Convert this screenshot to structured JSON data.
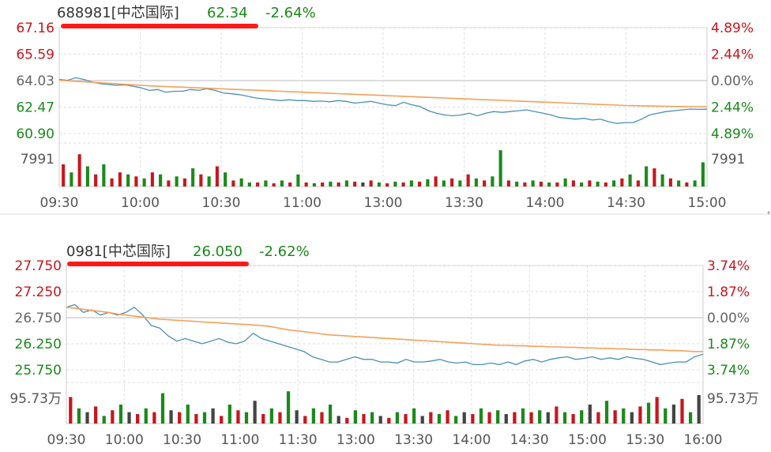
{
  "colors": {
    "up": "#c8161d",
    "down": "#1a8a1a",
    "neutral": "#666666",
    "price_line": "#4a8fb8",
    "avg_line": "#f5a05a",
    "grid": "#cccccc",
    "grid_dash": "#dddddd",
    "underline": "#ff1a1a"
  },
  "chart_data": [
    {
      "type": "line",
      "header": {
        "code_name": "688981[中芯国际]",
        "price": "62.34",
        "change": "-2.64%"
      },
      "y_left_labels": [
        "67.16",
        "65.59",
        "64.03",
        "62.47",
        "60.90"
      ],
      "y_right_labels": [
        "4.89%",
        "2.44%",
        "0.00%",
        "2.44%",
        "4.89%"
      ],
      "ylim": [
        60.9,
        67.16
      ],
      "volume_label": "7991",
      "x_tick_labels": [
        "09:30",
        "10:00",
        "10:30",
        "11:00",
        "13:00",
        "13:30",
        "14:00",
        "14:30",
        "15:00"
      ],
      "series": [
        {
          "values": [
            64.1,
            64.05,
            64.2,
            64.1,
            63.95,
            63.85,
            63.8,
            63.75,
            63.78,
            63.7,
            63.6,
            63.45,
            63.5,
            63.35,
            63.4,
            63.4,
            63.5,
            63.45,
            63.55,
            63.45,
            63.3,
            63.25,
            63.2,
            63.1,
            63.0,
            62.95,
            62.9,
            62.85,
            62.9,
            62.85,
            62.85,
            62.8,
            62.82,
            62.78,
            62.85,
            62.8,
            62.7,
            62.75,
            62.8,
            62.7,
            62.6,
            62.55,
            62.75,
            62.6,
            62.5,
            62.25,
            62.1,
            62.0,
            61.95,
            62.0,
            62.1,
            61.95,
            62.1,
            62.2,
            62.15,
            62.2,
            62.25,
            62.3,
            62.2,
            62.1,
            62.0,
            61.85,
            61.8,
            61.75,
            61.8,
            61.7,
            61.75,
            61.6,
            61.5,
            61.55,
            61.55,
            61.75,
            62.0,
            62.1,
            62.2,
            62.25,
            62.3,
            62.35,
            62.33,
            62.34
          ]
        },
        {
          "values": [
            64.05,
            64.02,
            63.99,
            63.96,
            63.93,
            63.9,
            63.87,
            63.84,
            63.81,
            63.78,
            63.75,
            63.72,
            63.7,
            63.68,
            63.66,
            63.64,
            63.62,
            63.6,
            63.58,
            63.56,
            63.54,
            63.52,
            63.5,
            63.48,
            63.46,
            63.44,
            63.42,
            63.4,
            63.38,
            63.36,
            63.34,
            63.32,
            63.3,
            63.28,
            63.26,
            63.24,
            63.22,
            63.2,
            63.18,
            63.16,
            63.14,
            63.12,
            63.1,
            63.08,
            63.06,
            63.04,
            63.02,
            63.0,
            62.98,
            62.96,
            62.94,
            62.92,
            62.9,
            62.88,
            62.86,
            62.84,
            62.82,
            62.8,
            62.78,
            62.76,
            62.74,
            62.72,
            62.7,
            62.68,
            62.66,
            62.64,
            62.62,
            62.6,
            62.58,
            62.56,
            62.55,
            62.54,
            62.53,
            62.52,
            62.51,
            62.5,
            62.5,
            62.49,
            62.49,
            62.48
          ]
        }
      ],
      "volume": [
        0.55,
        0.35,
        0.8,
        0.5,
        0.3,
        0.55,
        0.2,
        0.35,
        0.3,
        0.25,
        0.2,
        0.35,
        0.3,
        0.15,
        0.25,
        0.2,
        0.45,
        0.3,
        0.25,
        0.5,
        0.35,
        0.15,
        0.2,
        0.1,
        0.1,
        0.15,
        0.08,
        0.15,
        0.1,
        0.3,
        0.1,
        0.08,
        0.1,
        0.12,
        0.1,
        0.15,
        0.12,
        0.1,
        0.15,
        0.1,
        0.08,
        0.12,
        0.1,
        0.15,
        0.12,
        0.18,
        0.25,
        0.15,
        0.2,
        0.15,
        0.3,
        0.2,
        0.15,
        0.25,
        0.9,
        0.15,
        0.12,
        0.1,
        0.15,
        0.12,
        0.1,
        0.1,
        0.2,
        0.15,
        0.1,
        0.15,
        0.12,
        0.1,
        0.15,
        0.2,
        0.3,
        0.15,
        0.5,
        0.45,
        0.3,
        0.2,
        0.15,
        0.1,
        0.15,
        0.6
      ],
      "volume_dir": [
        "u",
        "d",
        "u",
        "d",
        "u",
        "d",
        "u",
        "u",
        "d",
        "u",
        "d",
        "u",
        "d",
        "u",
        "d",
        "u",
        "d",
        "u",
        "d",
        "u",
        "d",
        "u",
        "d",
        "d",
        "u",
        "d",
        "u",
        "d",
        "u",
        "d",
        "u",
        "d",
        "u",
        "d",
        "u",
        "d",
        "u",
        "n",
        "u",
        "d",
        "u",
        "d",
        "u",
        "d",
        "u",
        "d",
        "u",
        "d",
        "u",
        "d",
        "u",
        "d",
        "u",
        "d",
        "d",
        "u",
        "d",
        "u",
        "d",
        "u",
        "d",
        "u",
        "d",
        "u",
        "d",
        "u",
        "d",
        "u",
        "d",
        "u",
        "d",
        "u",
        "d",
        "u",
        "d",
        "u",
        "d",
        "u",
        "d",
        "d"
      ]
    },
    {
      "type": "line",
      "header": {
        "code_name": "0981[中芯国际]",
        "price": "26.050",
        "change": "-2.62%"
      },
      "y_left_labels": [
        "27.750",
        "27.250",
        "26.750",
        "26.250",
        "25.750"
      ],
      "y_right_labels": [
        "3.74%",
        "1.87%",
        "0.00%",
        "1.87%",
        "3.74%"
      ],
      "ylim": [
        25.75,
        27.75
      ],
      "volume_label": "95.73万",
      "x_tick_labels": [
        "09:30",
        "10:00",
        "10:30",
        "11:00",
        "11:30",
        "13:00",
        "13:30",
        "14:00",
        "14:30",
        "15:00",
        "15:30",
        "16:00"
      ],
      "series": [
        {
          "values": [
            26.95,
            27.0,
            26.85,
            26.9,
            26.8,
            26.85,
            26.8,
            26.85,
            26.95,
            26.8,
            26.6,
            26.55,
            26.4,
            26.3,
            26.35,
            26.3,
            26.25,
            26.3,
            26.35,
            26.28,
            26.25,
            26.3,
            26.45,
            26.35,
            26.3,
            26.25,
            26.2,
            26.15,
            26.1,
            26.0,
            25.95,
            25.9,
            25.9,
            25.95,
            26.0,
            25.95,
            25.95,
            25.9,
            25.9,
            25.88,
            25.95,
            25.9,
            25.9,
            25.92,
            25.95,
            25.9,
            25.88,
            25.9,
            25.85,
            25.85,
            25.88,
            25.85,
            25.9,
            25.85,
            25.92,
            25.95,
            25.9,
            25.95,
            25.98,
            26.0,
            25.95,
            25.97,
            26.0,
            25.95,
            25.98,
            25.95,
            26.0,
            25.97,
            25.95,
            25.9,
            25.85,
            25.88,
            25.9,
            25.9,
            26.0,
            26.05
          ]
        },
        {
          "values": [
            26.95,
            26.93,
            26.91,
            26.89,
            26.87,
            26.85,
            26.82,
            26.8,
            26.78,
            26.76,
            26.74,
            26.72,
            26.71,
            26.7,
            26.69,
            26.68,
            26.67,
            26.66,
            26.65,
            26.64,
            26.63,
            26.62,
            26.61,
            26.6,
            26.58,
            26.55,
            26.52,
            26.5,
            26.48,
            26.46,
            26.44,
            26.42,
            26.41,
            26.4,
            26.39,
            26.38,
            26.37,
            26.36,
            26.35,
            26.34,
            26.33,
            26.32,
            26.31,
            26.3,
            26.29,
            26.28,
            26.27,
            26.26,
            26.25,
            26.24,
            26.23,
            26.22,
            26.22,
            26.21,
            26.21,
            26.2,
            26.2,
            26.19,
            26.19,
            26.18,
            26.18,
            26.17,
            26.17,
            26.16,
            26.16,
            26.15,
            26.15,
            26.14,
            26.14,
            26.13,
            26.13,
            26.12,
            26.12,
            26.11,
            26.1,
            26.1
          ]
        }
      ],
      "volume": [
        0.7,
        0.4,
        0.3,
        0.45,
        0.2,
        0.35,
        0.5,
        0.3,
        0.25,
        0.4,
        0.3,
        0.8,
        0.35,
        0.3,
        0.5,
        0.25,
        0.3,
        0.4,
        0.2,
        0.5,
        0.35,
        0.3,
        0.6,
        0.25,
        0.4,
        0.3,
        0.85,
        0.35,
        0.2,
        0.4,
        0.3,
        0.5,
        0.2,
        0.15,
        0.35,
        0.25,
        0.3,
        0.2,
        0.15,
        0.3,
        0.25,
        0.4,
        0.2,
        0.3,
        0.25,
        0.35,
        0.2,
        0.3,
        0.25,
        0.4,
        0.3,
        0.35,
        0.25,
        0.3,
        0.4,
        0.3,
        0.35,
        0.3,
        0.45,
        0.3,
        0.25,
        0.35,
        0.5,
        0.3,
        0.6,
        0.35,
        0.4,
        0.3,
        0.45,
        0.55,
        0.7,
        0.4,
        0.5,
        0.65,
        0.3,
        0.75
      ],
      "volume_dir": [
        "u",
        "d",
        "n",
        "u",
        "d",
        "u",
        "d",
        "n",
        "u",
        "d",
        "u",
        "d",
        "n",
        "u",
        "d",
        "u",
        "d",
        "n",
        "u",
        "d",
        "u",
        "d",
        "n",
        "u",
        "d",
        "u",
        "d",
        "n",
        "u",
        "d",
        "u",
        "d",
        "n",
        "u",
        "d",
        "u",
        "d",
        "n",
        "u",
        "d",
        "u",
        "d",
        "n",
        "u",
        "d",
        "u",
        "d",
        "n",
        "u",
        "d",
        "u",
        "d",
        "n",
        "u",
        "d",
        "u",
        "d",
        "n",
        "u",
        "d",
        "u",
        "d",
        "n",
        "u",
        "d",
        "u",
        "d",
        "n",
        "u",
        "d",
        "u",
        "d",
        "n",
        "u",
        "d",
        "n"
      ]
    }
  ]
}
